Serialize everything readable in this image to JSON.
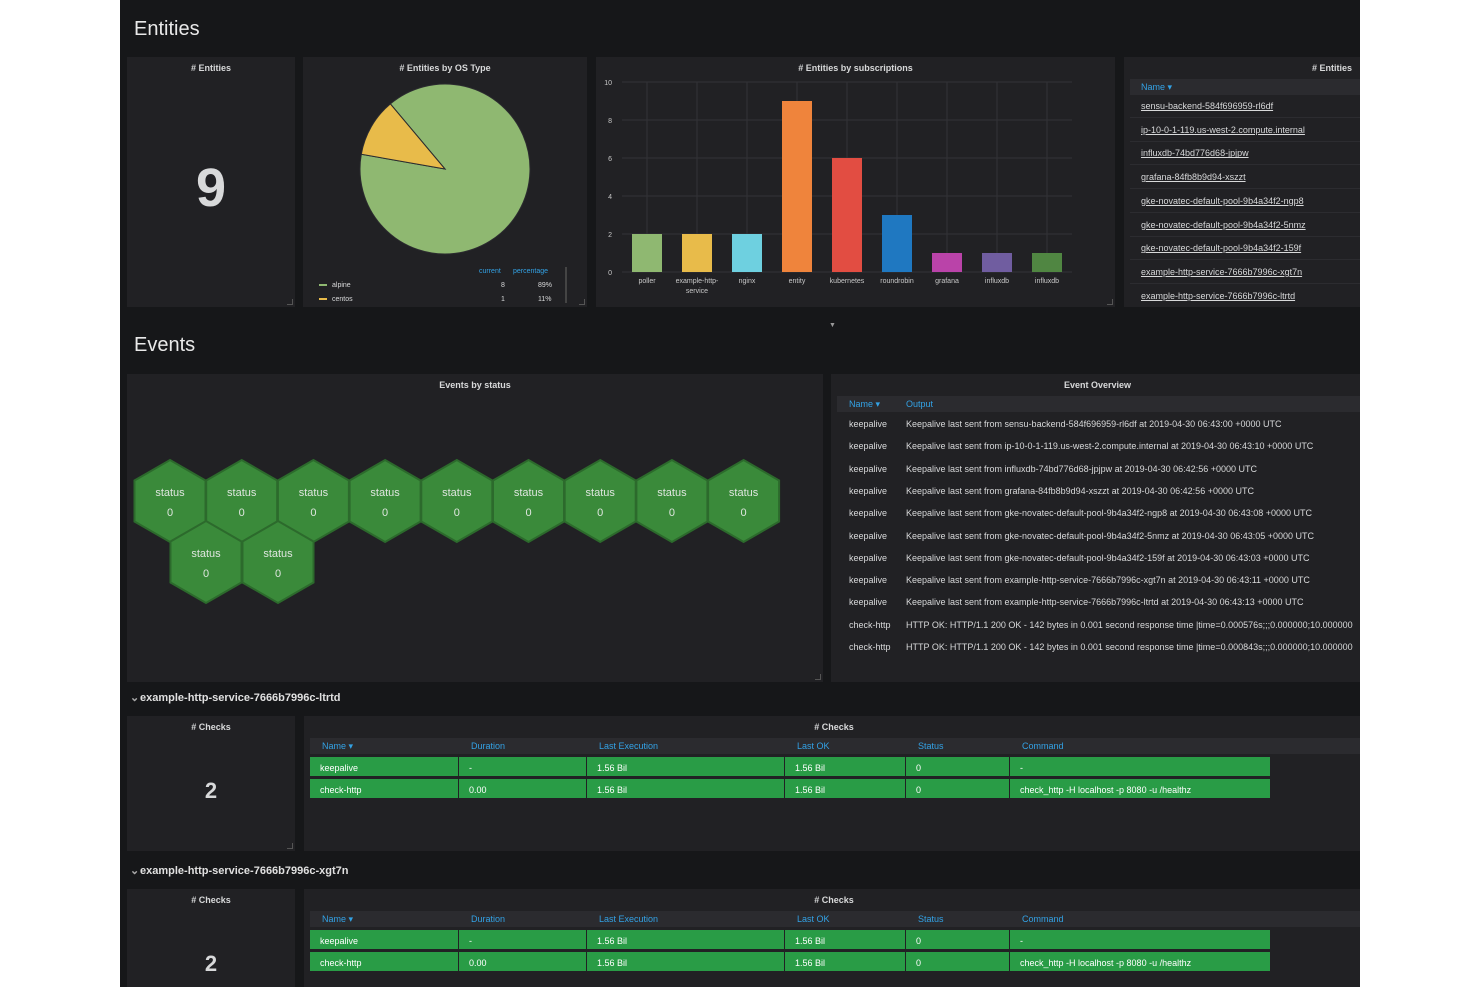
{
  "rows": {
    "entities_title": "Entities",
    "events_title": "Events"
  },
  "entity_count_panel": {
    "title": "# Entities",
    "value": "9"
  },
  "os_type_panel": {
    "title": "# Entities by OS Type",
    "legend_headers": {
      "current": "current",
      "percentage": "percentage"
    },
    "legend": [
      {
        "name": "alpine",
        "current": "8",
        "percentage": "89%",
        "color": "#8fb871"
      },
      {
        "name": "centos",
        "current": "1",
        "percentage": "11%",
        "color": "#e8bb4a"
      }
    ],
    "chart_data": {
      "type": "pie",
      "labels": [
        "alpine",
        "centos"
      ],
      "values": [
        8,
        1
      ],
      "colors": [
        "#8fb871",
        "#e8bb4a"
      ]
    }
  },
  "subscriptions_panel": {
    "title": "# Entities by subscriptions",
    "chart_data": {
      "type": "bar",
      "categories": [
        "poller",
        "example-http-service",
        "nginx",
        "entity",
        "kubernetes",
        "roundrobin",
        "grafana",
        "influxdb",
        "influxdb"
      ],
      "category_labels": [
        [
          "poller"
        ],
        [
          "example-http-",
          "service"
        ],
        [
          "nginx"
        ],
        [
          "entity"
        ],
        [
          "kubernetes"
        ],
        [
          "roundrobin"
        ],
        [
          "grafana"
        ],
        [
          "influxdb"
        ],
        [
          "influxdb"
        ]
      ],
      "values": [
        2,
        2,
        2,
        9,
        6,
        3,
        1,
        1,
        1
      ],
      "colors": [
        "#8fb871",
        "#e8bb4a",
        "#6ed0e0",
        "#ef843c",
        "#e24d42",
        "#1f78c1",
        "#ba43a9",
        "#705da0",
        "#508642"
      ],
      "yticks": [
        "0",
        "2",
        "4",
        "6",
        "8",
        "10"
      ],
      "ylim": [
        0,
        10
      ],
      "grid": true
    }
  },
  "entities_table_panel": {
    "title": "# Entities",
    "column": "Name ▾",
    "rows": [
      "sensu-backend-584f696959-rl6df",
      "ip-10-0-1-119.us-west-2.compute.internal",
      "influxdb-74bd776d68-jpjpw",
      "grafana-84fb8b9d94-xszzt",
      "gke-novatec-default-pool-9b4a34f2-ngp8",
      "gke-novatec-default-pool-9b4a34f2-5nmz",
      "gke-novatec-default-pool-9b4a34f2-159f",
      "example-http-service-7666b7996c-xgt7n",
      "example-http-service-7666b7996c-ltrtd"
    ]
  },
  "events_by_status_panel": {
    "title": "Events by status",
    "hexagons": [
      {
        "label": "status",
        "value": "0"
      },
      {
        "label": "status",
        "value": "0"
      },
      {
        "label": "status",
        "value": "0"
      },
      {
        "label": "status",
        "value": "0"
      },
      {
        "label": "status",
        "value": "0"
      },
      {
        "label": "status",
        "value": "0"
      },
      {
        "label": "status",
        "value": "0"
      },
      {
        "label": "status",
        "value": "0"
      },
      {
        "label": "status",
        "value": "0"
      },
      {
        "label": "status",
        "value": "0"
      },
      {
        "label": "status",
        "value": "0"
      }
    ]
  },
  "event_overview_panel": {
    "title": "Event Overview",
    "columns": [
      "Name ▾",
      "Output"
    ],
    "rows": [
      {
        "name": "keepalive",
        "output": "Keepalive last sent from sensu-backend-584f696959-rl6df at 2019-04-30 06:43:00 +0000 UTC"
      },
      {
        "name": "keepalive",
        "output": "Keepalive last sent from ip-10-0-1-119.us-west-2.compute.internal at 2019-04-30 06:43:10 +0000 UTC"
      },
      {
        "name": "keepalive",
        "output": "Keepalive last sent from influxdb-74bd776d68-jpjpw at 2019-04-30 06:42:56 +0000 UTC"
      },
      {
        "name": "keepalive",
        "output": "Keepalive last sent from grafana-84fb8b9d94-xszzt at 2019-04-30 06:42:56 +0000 UTC"
      },
      {
        "name": "keepalive",
        "output": "Keepalive last sent from gke-novatec-default-pool-9b4a34f2-ngp8 at 2019-04-30 06:43:08 +0000 UTC"
      },
      {
        "name": "keepalive",
        "output": "Keepalive last sent from gke-novatec-default-pool-9b4a34f2-5nmz at 2019-04-30 06:43:05 +0000 UTC"
      },
      {
        "name": "keepalive",
        "output": "Keepalive last sent from gke-novatec-default-pool-9b4a34f2-159f at 2019-04-30 06:43:03 +0000 UTC"
      },
      {
        "name": "keepalive",
        "output": "Keepalive last sent from example-http-service-7666b7996c-xgt7n at 2019-04-30 06:43:11 +0000 UTC"
      },
      {
        "name": "keepalive",
        "output": "Keepalive last sent from example-http-service-7666b7996c-ltrtd at 2019-04-30 06:43:13 +0000 UTC"
      },
      {
        "name": "check-http",
        "output": "HTTP OK: HTTP/1.1 200 OK - 142 bytes in 0.001 second response time |time=0.000576s;;;0.000000;10.000000"
      },
      {
        "name": "check-http",
        "output": "HTTP OK: HTTP/1.1 200 OK - 142 bytes in 0.001 second response time |time=0.000843s;;;0.000000;10.000000"
      }
    ]
  },
  "service_sections": [
    {
      "title": "example-http-service-7666b7996c-ltrtd",
      "count_title": "# Checks",
      "count": "2",
      "table_title": "# Checks",
      "columns": [
        "Name ▾",
        "Duration",
        "Last Execution",
        "Last OK",
        "Status",
        "Command"
      ],
      "rows": [
        [
          "keepalive",
          "-",
          "1.56 Bil",
          "1.56 Bil",
          "0",
          "-"
        ],
        [
          "check-http",
          "0.00",
          "1.56 Bil",
          "1.56 Bil",
          "0",
          "check_http -H localhost -p 8080 -u /healthz"
        ]
      ]
    },
    {
      "title": "example-http-service-7666b7996c-xgt7n",
      "count_title": "# Checks",
      "count": "2",
      "table_title": "# Checks",
      "columns": [
        "Name ▾",
        "Duration",
        "Last Execution",
        "Last OK",
        "Status",
        "Command"
      ],
      "rows": [
        [
          "keepalive",
          "-",
          "1.56 Bil",
          "1.56 Bil",
          "0",
          "-"
        ],
        [
          "check-http",
          "0.00",
          "1.56 Bil",
          "1.56 Bil",
          "0",
          "check_http -H localhost -p 8080 -u /healthz"
        ]
      ]
    }
  ],
  "icons": {
    "collapse": "chevron-down-icon",
    "resize": "resize-handle-icon"
  },
  "colors": {
    "background": "#161719",
    "panel": "#212124",
    "accent": "#33a2e5",
    "ok_green": "#299c46",
    "hex_green": "#3a8a3a"
  }
}
